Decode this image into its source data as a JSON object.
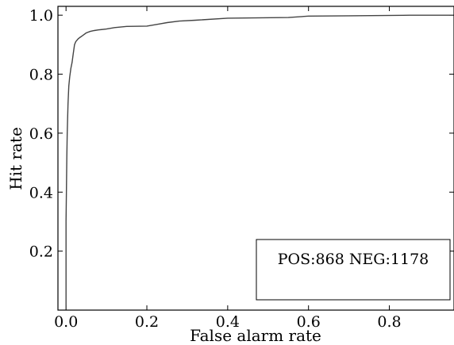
{
  "chart_data": {
    "type": "line",
    "title": "",
    "xlabel": "False alarm rate",
    "ylabel": "Hit rate",
    "xlim": [
      -0.02,
      0.96
    ],
    "ylim": [
      0.0,
      1.03
    ],
    "xticks": [
      0.0,
      0.2,
      0.4,
      0.6,
      0.8
    ],
    "xtick_labels": [
      "0.0",
      "0.2",
      "0.4",
      "0.6",
      "0.8"
    ],
    "yticks": [
      0.2,
      0.4,
      0.6,
      0.8,
      1.0
    ],
    "ytick_labels": [
      "0.2",
      "0.4",
      "0.6",
      "0.8",
      "1.0"
    ],
    "grid": false,
    "series": [
      {
        "color": "#444444",
        "x": [
          0.0,
          0.0,
          0.002,
          0.003,
          0.005,
          0.007,
          0.009,
          0.012,
          0.015,
          0.018,
          0.021,
          0.024,
          0.027,
          0.03,
          0.035,
          0.04,
          0.05,
          0.06,
          0.07,
          0.08,
          0.1,
          0.12,
          0.15,
          0.2,
          0.23,
          0.25,
          0.28,
          0.32,
          0.4,
          0.55,
          0.6,
          0.7,
          0.85,
          0.96
        ],
        "y": [
          0.0,
          0.3,
          0.52,
          0.6,
          0.7,
          0.76,
          0.79,
          0.82,
          0.84,
          0.87,
          0.9,
          0.91,
          0.915,
          0.92,
          0.925,
          0.93,
          0.94,
          0.945,
          0.948,
          0.95,
          0.953,
          0.958,
          0.962,
          0.963,
          0.97,
          0.975,
          0.98,
          0.983,
          0.99,
          0.992,
          0.997,
          0.998,
          1.0,
          1.0
        ]
      }
    ],
    "annotation": "POS:868 NEG:1178"
  }
}
